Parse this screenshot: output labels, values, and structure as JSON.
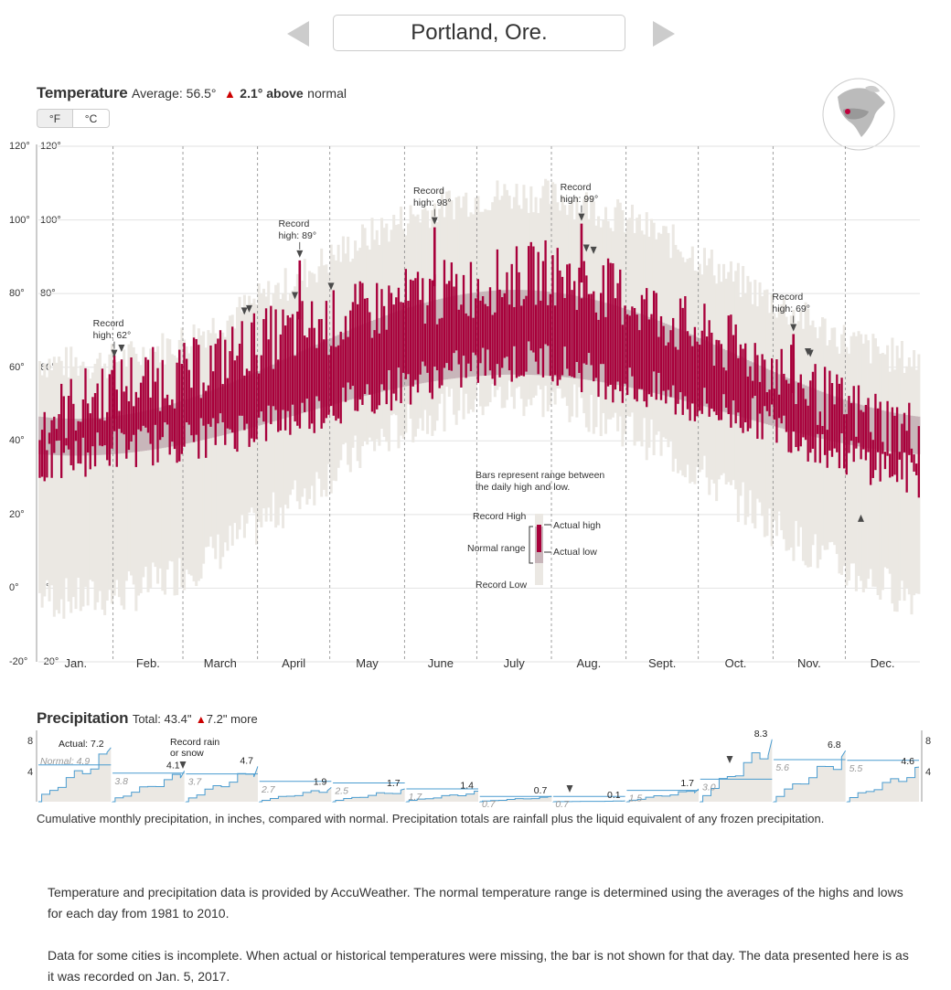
{
  "header": {
    "city": "Portland, Ore."
  },
  "temperature": {
    "title": "Temperature",
    "average_label": "Average: 56.5°",
    "anomaly_value": "2.1° above",
    "anomaly_suffix": "normal",
    "units": {
      "f": "°F",
      "c": "°C",
      "selected": "f"
    },
    "y_ticks_outer": [
      "120°",
      "100°",
      "80°",
      "60°",
      "40°",
      "20°",
      "0°",
      "-20°"
    ],
    "y_ticks_inner": [
      "120°",
      "100°",
      "80°",
      "60°",
      "40°",
      "20°",
      "0°",
      "-20°"
    ],
    "record_annotations": [
      {
        "text": "Record\nhigh: 62°",
        "day": 31,
        "value": 62
      },
      {
        "text": "Record\nhigh: 89°",
        "day": 108,
        "value": 89
      },
      {
        "text": "Record\nhigh: 98°",
        "day": 164,
        "value": 98
      },
      {
        "text": "Record\nhigh: 99°",
        "day": 225,
        "value": 99
      },
      {
        "text": "Record\nhigh: 69°",
        "day": 313,
        "value": 69
      }
    ],
    "key": {
      "intro": "Bars represent range between\nthe daily high and low.",
      "record_high": "Record High",
      "normal_range": "Normal range",
      "record_low": "Record Low",
      "actual_high": "Actual high",
      "actual_low": "Actual low"
    },
    "colors": {
      "actual": "#a8003b",
      "normal": "#c8b6ba",
      "record": "#ebe8e3",
      "marker": "#4a4a4a"
    }
  },
  "chart_data": [
    {
      "type": "bar",
      "title": "Temperature",
      "x": "day of year",
      "ylim": [
        -20,
        120
      ],
      "categories": [
        "Jan.",
        "Feb.",
        "March",
        "April",
        "May",
        "June",
        "July",
        "Aug.",
        "Sept.",
        "Oct.",
        "Nov.",
        "Dec."
      ],
      "normal": {
        "high_min": 46,
        "high_max": 81,
        "low_min": 36,
        "low_max": 58
      },
      "record": {
        "high_min": 61,
        "high_max": 107,
        "low_min": -3,
        "low_max": 52
      },
      "actual_anchors_high": [
        [
          0,
          45
        ],
        [
          30,
          55
        ],
        [
          60,
          58
        ],
        [
          90,
          67
        ],
        [
          120,
          72
        ],
        [
          150,
          78
        ],
        [
          180,
          82
        ],
        [
          210,
          86
        ],
        [
          240,
          80
        ],
        [
          270,
          70
        ],
        [
          300,
          62
        ],
        [
          330,
          50
        ],
        [
          365,
          42
        ]
      ],
      "actual_anchors_low": [
        [
          0,
          33
        ],
        [
          30,
          38
        ],
        [
          60,
          40
        ],
        [
          90,
          44
        ],
        [
          120,
          49
        ],
        [
          150,
          55
        ],
        [
          180,
          60
        ],
        [
          210,
          62
        ],
        [
          240,
          56
        ],
        [
          270,
          50
        ],
        [
          300,
          46
        ],
        [
          330,
          37
        ],
        [
          365,
          30
        ]
      ],
      "record_high_marks": [
        31,
        34,
        85,
        87,
        106,
        108,
        121,
        164,
        225,
        227,
        230,
        313,
        319,
        320
      ],
      "record_low_marks": [
        341
      ]
    },
    {
      "type": "line",
      "title": "Precipitation",
      "categories": [
        "Jan.",
        "Feb.",
        "March",
        "April",
        "May",
        "June",
        "July",
        "Aug.",
        "Sept.",
        "Oct.",
        "Nov.",
        "Dec."
      ],
      "ylim": [
        0,
        9
      ],
      "series": [
        {
          "name": "Actual",
          "values": [
            7.2,
            4.1,
            4.7,
            1.9,
            1.7,
            1.4,
            0.7,
            0.1,
            1.7,
            8.3,
            6.8,
            4.6
          ]
        },
        {
          "name": "Normal",
          "values": [
            4.9,
            3.8,
            3.7,
            2.7,
            2.5,
            1.7,
            0.7,
            0.7,
            1.5,
            3.0,
            5.6,
            5.5
          ]
        }
      ]
    }
  ],
  "precipitation": {
    "title": "Precipitation",
    "total_label": "Total: 43.4\"",
    "anomaly": "7.2\" more",
    "y_ticks": [
      "8",
      "4"
    ],
    "actual_label": "Actual: 7.2",
    "normal_label": "Normal: 4.9",
    "record_note": "Record rain\nor snow",
    "actual_values": [
      "7.2",
      "4.1",
      "4.7",
      "1.9",
      "1.7",
      "1.4",
      "0.7",
      "0.1",
      "1.7",
      "8.3",
      "6.8",
      "4.6"
    ],
    "normal_values": [
      "4.9",
      "3.8",
      "3.7",
      "2.7",
      "2.5",
      "1.7",
      "0.7",
      "0.7",
      "1.5",
      "3.0",
      "5.6",
      "5.5"
    ],
    "colors": {
      "line": "#4a9cd0",
      "fill": "#ebe8e3",
      "normal_line": "#4a9cd0"
    }
  },
  "caption": "Cumulative monthly precipitation, in inches, compared with normal. Precipitation totals are rainfall plus the liquid equivalent of any frozen precipitation.",
  "notes": [
    "Temperature and precipitation data is provided by AccuWeather. The normal temperature range is determined using the averages of the highs and lows for each day from 1981 to 2010.",
    "Data for some cities is incomplete. When actual or historical temperatures were missing, the bar is not shown for that day. The data presented here is as it was recorded on Jan. 5, 2017."
  ]
}
